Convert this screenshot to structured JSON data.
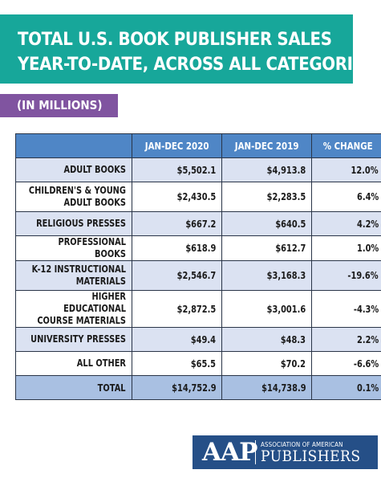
{
  "chart_data": {
    "type": "table",
    "title_lines": [
      "TOTAL U.S. BOOK PUBLISHER SALES",
      "YEAR-TO-DATE, ACROSS ALL CATEGORIES"
    ],
    "subtitle": "(IN MILLIONS)",
    "columns": [
      "",
      "JAN-DEC 2020",
      "JAN-DEC 2019",
      "% CHANGE"
    ],
    "rows": [
      {
        "category": "ADULT BOOKS",
        "y2020": "$5,502.1",
        "y2019": "$4,913.8",
        "change": "12.0%"
      },
      {
        "category": "CHILDREN'S & YOUNG ADULT BOOKS",
        "y2020": "$2,430.5",
        "y2019": "$2,283.5",
        "change": "6.4%"
      },
      {
        "category": "RELIGIOUS PRESSES",
        "y2020": "$667.2",
        "y2019": "$640.5",
        "change": "4.2%"
      },
      {
        "category": "PROFESSIONAL BOOKS",
        "y2020": "$618.9",
        "y2019": "$612.7",
        "change": "1.0%"
      },
      {
        "category": "K-12 INSTRUCTIONAL MATERIALS",
        "y2020": "$2,546.7",
        "y2019": "$3,168.3",
        "change": "-19.6%"
      },
      {
        "category": "HIGHER EDUCATIONAL COURSE MATERIALS",
        "y2020": "$2,872.5",
        "y2019": "$3,001.6",
        "change": "-4.3%"
      },
      {
        "category": "UNIVERSITY PRESSES",
        "y2020": "$49.4",
        "y2019": "$48.3",
        "change": "2.2%"
      },
      {
        "category": "ALL OTHER",
        "y2020": "$65.5",
        "y2019": "$70.2",
        "change": "-6.6%"
      }
    ],
    "total": {
      "category": "TOTAL",
      "y2020": "$14,752.9",
      "y2019": "$14,738.9",
      "change": "0.1%"
    }
  },
  "logo": {
    "mark": "AAP",
    "top_text": "ASSOCIATION OF AMERICAN",
    "bottom_text": "PUBLISHERS"
  },
  "colors": {
    "title_bg": "#17a79a",
    "subtitle_bg": "#8054a0",
    "header_bg": "#4f86c6",
    "row_alt_bg": "#dbe2f2",
    "total_bg": "#a9c0e2",
    "logo_bg": "#254f87"
  }
}
